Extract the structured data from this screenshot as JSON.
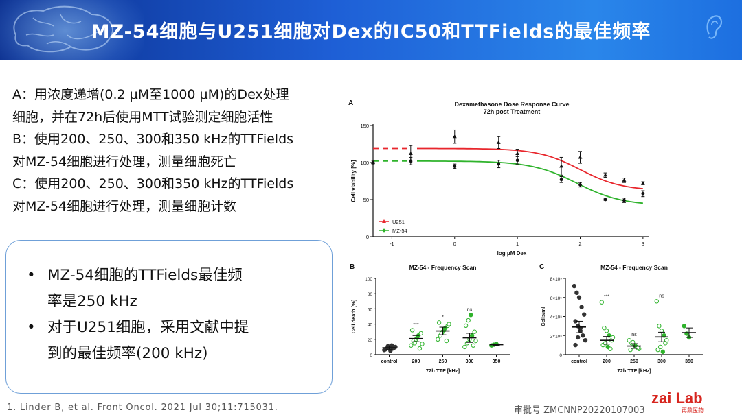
{
  "header": {
    "title": "MZ-54细胞与U251细胞对Dex的IC50和TTFields的最佳频率"
  },
  "left_text": [
    "A：用浓度递增(0.2 μM至1000 μM)的Dex处理",
    "细胞，并在72h后使用MTT试验测定细胞活性",
    "B：使用200、250、300和350 kHz的TTFields",
    "对MZ-54细胞进行处理，测量细胞死亡",
    "C：使用200、250、300和350 kHz的TTFields",
    "对MZ-54细胞进行处理，测量细胞计数"
  ],
  "callout": [
    {
      "line1": "MZ-54细胞的TTFields最佳频",
      "line2": "率是250 kHz"
    },
    {
      "line1": "对于U251细胞，采用文献中提",
      "line2": "到的最佳频率(200 kHz)"
    }
  ],
  "bullet_char": "•",
  "footer": {
    "reference": "1. Linder B, et al. Front Oncol. 2021 Jul 30;11:715031.",
    "approval": "审批号 ZMCNNP20220107003",
    "logo": "zai Lab",
    "logo_sub": "再鼎医药"
  },
  "colors": {
    "header_dark": "#0b2f8f",
    "header_light": "#2a86ea",
    "u251": "#e8262c",
    "mz54": "#2fb32c",
    "callout_border": "#6fa0d8",
    "logo_red": "#d7261f"
  },
  "chart_data": [
    {
      "panel": "A",
      "type": "line",
      "title": "Dexamethasone Dose Response Curve",
      "subtitle": "72h post Treatment",
      "xlabel": "log μM Dex",
      "ylabel": "Cell viability [%]",
      "xlim": [
        -1.3,
        3.1
      ],
      "ylim": [
        0,
        150
      ],
      "xticks": [
        "-1",
        "0",
        "1",
        "2",
        "3"
      ],
      "xtick_values": [
        -1,
        0,
        1,
        2,
        3
      ],
      "yticks": [
        "0",
        "50",
        "100",
        "150"
      ],
      "ytick_values": [
        0,
        50,
        100,
        150
      ],
      "legend_position": "bottom-left",
      "series": [
        {
          "name": "U251",
          "marker": "triangle",
          "points": [
            {
              "x": -1.3,
              "y": 100,
              "err": 3
            },
            {
              "x": -0.7,
              "y": 112,
              "err": 11
            },
            {
              "x": 0,
              "y": 135,
              "err": 9
            },
            {
              "x": 0.7,
              "y": 127,
              "err": 8
            },
            {
              "x": 1,
              "y": 112,
              "err": 6
            },
            {
              "x": 1.7,
              "y": 95,
              "err": 12
            },
            {
              "x": 2,
              "y": 107,
              "err": 8
            },
            {
              "x": 2.4,
              "y": 83,
              "err": 3
            },
            {
              "x": 2.7,
              "y": 76,
              "err": 3
            },
            {
              "x": 3,
              "y": 72,
              "err": 2
            }
          ],
          "curve": {
            "top": 119,
            "bottom": 62,
            "logIC50": 2.0,
            "hill": -1.3
          }
        },
        {
          "name": "MZ-54",
          "marker": "circle",
          "points": [
            {
              "x": -1.3,
              "y": 100,
              "err": 3
            },
            {
              "x": -0.7,
              "y": 102,
              "err": 5
            },
            {
              "x": 0,
              "y": 95,
              "err": 3
            },
            {
              "x": 0.7,
              "y": 98,
              "err": 5
            },
            {
              "x": 1,
              "y": 103,
              "err": 5
            },
            {
              "x": 1.7,
              "y": 77,
              "err": 4
            },
            {
              "x": 2,
              "y": 70,
              "err": 3
            },
            {
              "x": 2.4,
              "y": 50,
              "err": 1
            },
            {
              "x": 2.7,
              "y": 49,
              "err": 3
            },
            {
              "x": 3,
              "y": 58,
              "err": 4
            }
          ],
          "curve": {
            "top": 102,
            "bottom": 42,
            "logIC50": 1.95,
            "hill": -1.2
          }
        }
      ]
    },
    {
      "panel": "B",
      "type": "scatter",
      "title": "MZ-54 - Frequency Scan",
      "xlabel": "72h TTF [kHz]",
      "ylabel": "Cell death [%]",
      "ylim": [
        0,
        100
      ],
      "yticks": [
        "0",
        "20",
        "40",
        "60",
        "80",
        "100"
      ],
      "ytick_values": [
        0,
        20,
        40,
        60,
        80,
        100
      ],
      "categories": [
        "control",
        "200",
        "250",
        "300",
        "350"
      ],
      "means": [
        9,
        21,
        31,
        22,
        13
      ],
      "sems": [
        2,
        4,
        5,
        6,
        1
      ],
      "significance": [
        "",
        "***",
        "*",
        "ns",
        ""
      ],
      "points": [
        [
          6,
          8,
          10,
          12,
          9,
          7,
          11,
          5,
          8,
          10
        ],
        [
          12,
          18,
          20,
          25,
          28,
          32,
          15,
          22,
          8,
          14
        ],
        [
          20,
          25,
          30,
          35,
          38,
          42,
          28,
          32,
          18,
          40
        ],
        [
          10,
          15,
          20,
          25,
          30,
          38,
          45,
          52,
          12,
          18
        ],
        [
          12,
          13,
          14
        ]
      ]
    },
    {
      "panel": "C",
      "type": "scatter",
      "title": "MZ-54 - Frequency Scan",
      "xlabel": "72h TTF [kHz]",
      "ylabel": "Cells/ml",
      "ylim": [
        0,
        800000
      ],
      "yticks": [
        "0",
        "2×10⁵",
        "4×10⁵",
        "6×10⁵",
        "8×10⁵"
      ],
      "ytick_values": [
        0,
        200000,
        400000,
        600000,
        800000
      ],
      "categories": [
        "control",
        "200",
        "250",
        "300",
        "350"
      ],
      "means": [
        290000,
        150000,
        90000,
        185000,
        230000
      ],
      "sems": [
        60000,
        40000,
        25000,
        50000,
        50000
      ],
      "significance": [
        "",
        "***",
        "ns",
        "ns",
        ""
      ],
      "points": [
        [
          720000,
          650000,
          600000,
          500000,
          420000,
          350000,
          300000,
          250000,
          200000,
          150000,
          100000,
          180000,
          280000
        ],
        [
          550000,
          280000,
          250000,
          200000,
          150000,
          100000,
          120000,
          80000,
          60000,
          180000
        ],
        [
          150000,
          120000,
          100000,
          80000,
          60000,
          50000,
          130000,
          90000,
          70000
        ],
        [
          560000,
          300000,
          250000,
          200000,
          150000,
          50000,
          80000,
          30000,
          120000
        ],
        [
          300000,
          220000,
          180000
        ]
      ]
    }
  ]
}
